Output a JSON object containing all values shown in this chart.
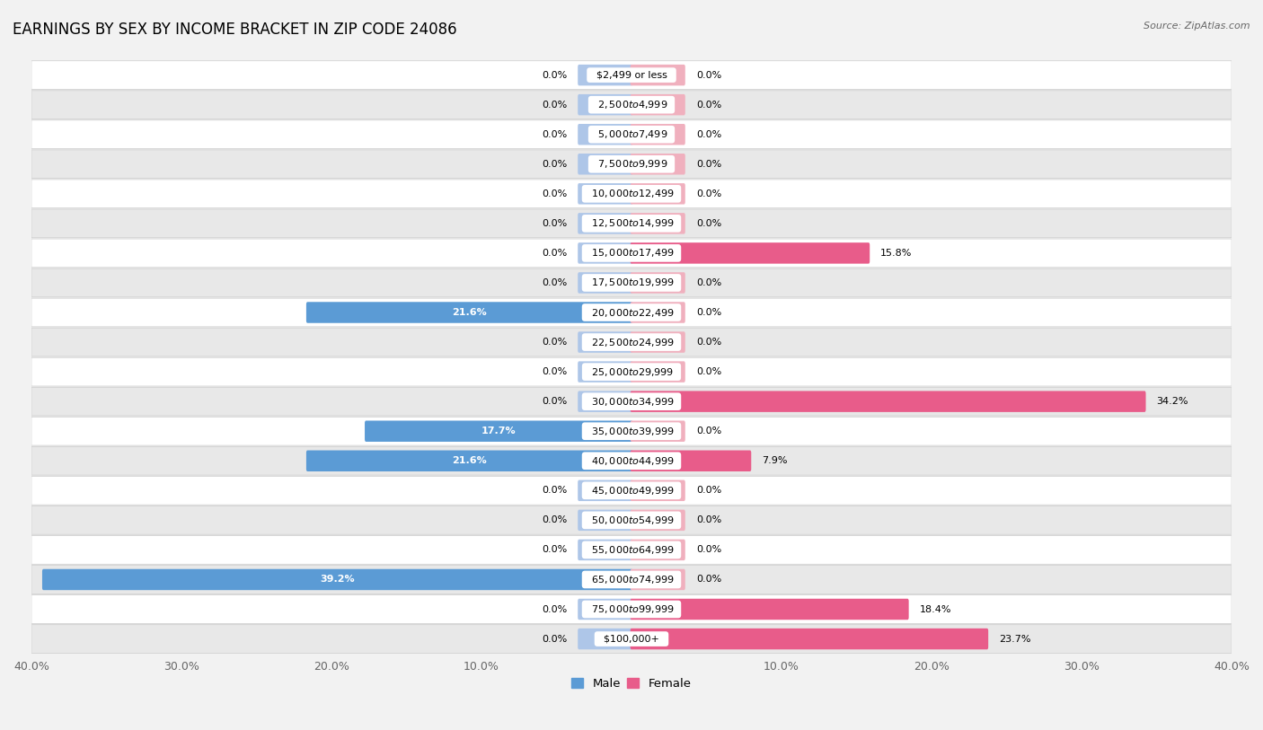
{
  "title": "EARNINGS BY SEX BY INCOME BRACKET IN ZIP CODE 24086",
  "source": "Source: ZipAtlas.com",
  "categories": [
    "$2,499 or less",
    "$2,500 to $4,999",
    "$5,000 to $7,499",
    "$7,500 to $9,999",
    "$10,000 to $12,499",
    "$12,500 to $14,999",
    "$15,000 to $17,499",
    "$17,500 to $19,999",
    "$20,000 to $22,499",
    "$22,500 to $24,999",
    "$25,000 to $29,999",
    "$30,000 to $34,999",
    "$35,000 to $39,999",
    "$40,000 to $44,999",
    "$45,000 to $49,999",
    "$50,000 to $54,999",
    "$55,000 to $64,999",
    "$65,000 to $74,999",
    "$75,000 to $99,999",
    "$100,000+"
  ],
  "male_values": [
    0.0,
    0.0,
    0.0,
    0.0,
    0.0,
    0.0,
    0.0,
    0.0,
    21.6,
    0.0,
    0.0,
    0.0,
    17.7,
    21.6,
    0.0,
    0.0,
    0.0,
    39.2,
    0.0,
    0.0
  ],
  "female_values": [
    0.0,
    0.0,
    0.0,
    0.0,
    0.0,
    0.0,
    15.8,
    0.0,
    0.0,
    0.0,
    0.0,
    34.2,
    0.0,
    7.9,
    0.0,
    0.0,
    0.0,
    0.0,
    18.4,
    23.7
  ],
  "male_color_light": "#aec6e8",
  "female_color_light": "#f0b0be",
  "male_color_dark": "#5b9bd5",
  "female_color_dark": "#e85c8a",
  "xlim": 40.0,
  "stub_size": 3.5,
  "background_color": "#f2f2f2",
  "row_color_even": "#ffffff",
  "row_color_odd": "#e8e8e8",
  "label_color": "#666666",
  "title_fontsize": 12,
  "axis_fontsize": 9,
  "bar_label_fontsize": 8,
  "category_fontsize": 8
}
